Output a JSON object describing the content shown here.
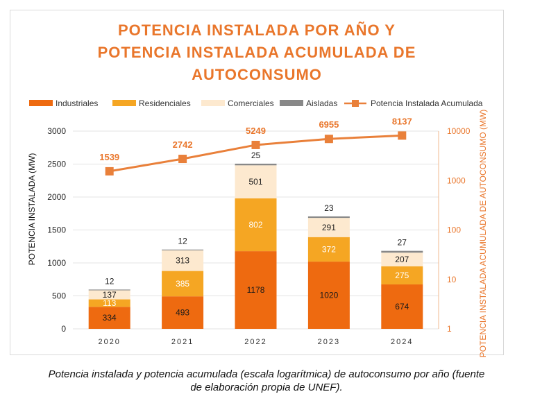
{
  "chart_data": {
    "type": "bar",
    "stacked": true,
    "title_lines": [
      "POTENCIA INSTALADA POR AÑO Y",
      "POTENCIA INSTALADA ACUMULADA DE",
      "AUTOCONSUMO"
    ],
    "categories": [
      "2020",
      "2021",
      "2022",
      "2023",
      "2024"
    ],
    "series": [
      {
        "name": "Industriales",
        "color": "#ee6a10",
        "values": [
          334,
          493,
          1178,
          1020,
          674
        ],
        "label_color": "#1a1a1a"
      },
      {
        "name": "Residenciales",
        "color": "#f5a623",
        "values": [
          113,
          385,
          802,
          372,
          275
        ],
        "label_color": "#ffffff"
      },
      {
        "name": "Comerciales",
        "color": "#fde9cf",
        "values": [
          137,
          313,
          501,
          291,
          207
        ],
        "label_color": "#1a1a1a"
      },
      {
        "name": "Aisladas",
        "color": "#888888",
        "values": [
          12,
          12,
          25,
          23,
          27
        ],
        "label_color": "#1a1a1a"
      }
    ],
    "line_series": {
      "name": "Potencia Instalada Acumulada",
      "color": "#e9803a",
      "values": [
        1539,
        2742,
        5249,
        6955,
        8137
      ],
      "axis": "right"
    },
    "ylabel": "POTENCIA  INSTALADA (MW)",
    "ylim": [
      0,
      3000
    ],
    "yticks": [
      "0",
      "500",
      "1000",
      "1500",
      "2000",
      "2500",
      "3000"
    ],
    "y2label": "POTENCIA INSTALADA ACUMULADA DE AUTOCONSUMO (MW)",
    "y2scale": "log",
    "y2lim": [
      1,
      10000
    ],
    "y2ticks": [
      "1",
      "10",
      "100",
      "1000",
      "10000"
    ],
    "grid": true,
    "legend_position": "top"
  },
  "caption_line1": "Potencia instalada y potencia acumulada (escala logarítmica) de autoconsumo por año (fuente",
  "caption_line2": "de elaboración propia de UNEF)."
}
